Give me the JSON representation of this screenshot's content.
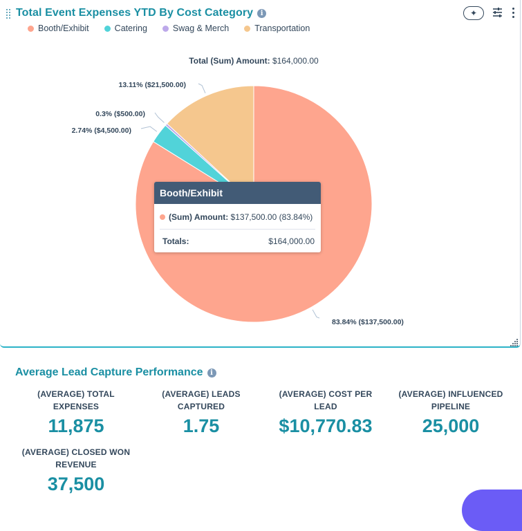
{
  "chart_card": {
    "title": "Total Event Expenses YTD By Cost Category",
    "info_icon": "info-icon",
    "toolbar": {
      "ai_icon": "✦",
      "filter_icon": "sliders-icon",
      "more_icon": "more-vertical-icon"
    }
  },
  "chart_data": {
    "type": "pie",
    "title": "Total Event Expenses YTD By Cost Category",
    "total_label": "Total (Sum) Amount:",
    "total_value": "$164,000.00",
    "slices": [
      {
        "name": "Booth/Exhibit",
        "value": 137500,
        "label": "83.84% ($137,500.00)",
        "color": "#fea58e"
      },
      {
        "name": "Catering",
        "value": 4500,
        "label": "2.74% ($4,500.00)",
        "color": "#51d3d9"
      },
      {
        "name": "Swag & Merch",
        "value": 500,
        "label": "0.3% ($500.00)",
        "color": "#bda9ea"
      },
      {
        "name": "Transportation",
        "value": 21500,
        "label": "13.11% ($21,500.00)",
        "color": "#f5c78e"
      }
    ],
    "legend_position": "top-left"
  },
  "tooltip": {
    "title": "Booth/Exhibit",
    "series_label": "(Sum) Amount:",
    "series_value": "$137,500.00 (83.84%)",
    "dot_color": "#fea58e",
    "totals_label": "Totals:",
    "totals_value": "$164,000.00"
  },
  "kpi_card": {
    "title": "Average Lead Capture Performance",
    "items": [
      {
        "label": "(AVERAGE) TOTAL EXPENSES",
        "value": "11,875"
      },
      {
        "label": "(AVERAGE) LEADS CAPTURED",
        "value": "1.75"
      },
      {
        "label": "(AVERAGE) COST PER LEAD",
        "value": "$10,770.83"
      },
      {
        "label": "(AVERAGE) INFLUENCED PIPELINE",
        "value": "25,000"
      },
      {
        "label": "(AVERAGE) CLOSED WON REVENUE",
        "value": "37,500"
      }
    ]
  },
  "colors": {
    "accent": "#1a8fa3",
    "text": "#33475b",
    "tooltip_header": "#425b76"
  }
}
